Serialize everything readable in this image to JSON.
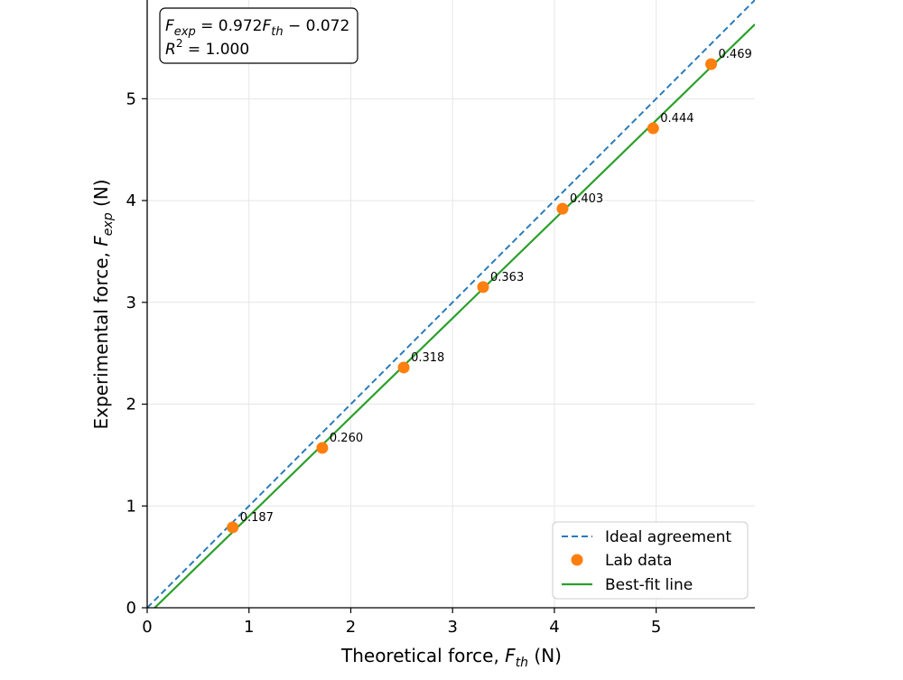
{
  "chart_data": {
    "type": "scatter",
    "title": "",
    "xlabel": {
      "prefix": "Theoretical force, ",
      "var": "F",
      "sub": "th",
      "suffix": " (N)"
    },
    "ylabel": {
      "prefix": "Experimental force, ",
      "var": "F",
      "sub": "exp",
      "suffix": " (N)"
    },
    "xlim": [
      0,
      5.97
    ],
    "ylim": [
      0,
      5.97
    ],
    "x_ticks": [
      0,
      1,
      2,
      3,
      4,
      5
    ],
    "y_ticks": [
      0,
      1,
      2,
      3,
      4,
      5
    ],
    "grid": true,
    "series": [
      {
        "name": "Ideal agreement",
        "kind": "line",
        "style": "dashed",
        "color": "#2b7bb9",
        "x": [
          0,
          5.97
        ],
        "y": [
          0,
          5.97
        ]
      },
      {
        "name": "Lab data",
        "kind": "scatter",
        "color": "#ff7f0e",
        "x": [
          0.84,
          1.72,
          2.52,
          3.3,
          4.08,
          4.97,
          5.54
        ],
        "y": [
          0.79,
          1.57,
          2.36,
          3.15,
          3.92,
          4.71,
          5.34
        ],
        "labels": [
          "0.187",
          "0.260",
          "0.318",
          "0.363",
          "0.403",
          "0.444",
          "0.469"
        ]
      },
      {
        "name": "Best-fit line",
        "kind": "line",
        "style": "solid",
        "color": "#2ca02c",
        "slope": 0.972,
        "intercept": -0.072
      }
    ],
    "annotation": {
      "eq": {
        "lhs_var": "F",
        "lhs_sub": "exp",
        "eq": " = 0.972",
        "var": "F",
        "sub": "th",
        "tail": " − 0.072"
      },
      "r2": {
        "var": "R",
        "sup": "2",
        "tail": " = 1.000"
      }
    },
    "legend": {
      "position": "lower-right"
    }
  }
}
